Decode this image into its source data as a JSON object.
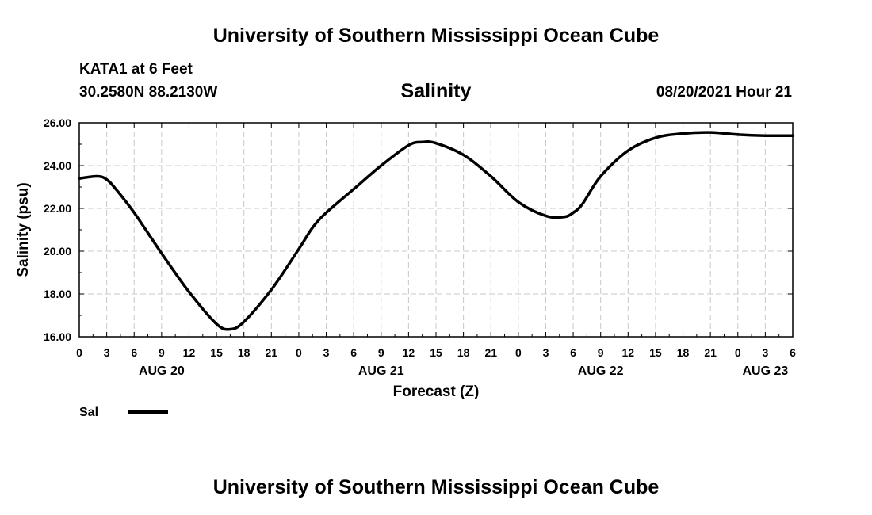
{
  "header": {
    "title": "University of Southern Mississippi Ocean Cube",
    "station": "KATA1 at 6 Feet",
    "coordinates": "30.2580N  88.2130W",
    "valid_time": "08/20/2021 Hour 21"
  },
  "footer": {
    "title": "University of Southern Mississippi Ocean Cube"
  },
  "chart_data": {
    "type": "line",
    "title": "Salinity",
    "xlabel": "Forecast (Z)",
    "ylabel": "Salinity (psu)",
    "ylim": [
      16,
      26
    ],
    "yticks": [
      "16.00",
      "18.00",
      "20.00",
      "22.00",
      "24.00",
      "26.00"
    ],
    "x_unit": "forecast hour",
    "xlim": [
      0,
      78
    ],
    "xtick_labels": [
      "0",
      "3",
      "6",
      "9",
      "12",
      "15",
      "18",
      "21",
      "0",
      "3",
      "6",
      "9",
      "12",
      "15",
      "18",
      "21",
      "0",
      "3",
      "6",
      "9",
      "12",
      "15",
      "18",
      "21",
      "0",
      "3",
      "6"
    ],
    "day_labels": [
      {
        "hour": 9,
        "label": "AUG 20"
      },
      {
        "hour": 33,
        "label": "AUG 21"
      },
      {
        "hour": 57,
        "label": "AUG 22"
      },
      {
        "hour": 75,
        "label": "AUG 23"
      }
    ],
    "grid": true,
    "legend": {
      "placement": "bottom-left"
    },
    "series": [
      {
        "name": "Sal",
        "color": "#000000",
        "x": [
          0,
          2,
          3,
          4,
          6,
          9,
          12,
          15,
          16.5,
          18,
          21,
          24,
          25.5,
          27,
          30,
          33,
          36,
          37.5,
          39,
          42,
          45,
          48,
          51,
          53,
          54,
          55,
          57,
          60,
          63,
          66,
          69,
          72,
          75,
          78
        ],
        "y": [
          23.4,
          23.5,
          23.35,
          22.9,
          21.8,
          19.9,
          18.1,
          16.6,
          16.35,
          16.7,
          18.2,
          20.1,
          21.1,
          21.8,
          22.9,
          24.0,
          24.95,
          25.1,
          25.05,
          24.5,
          23.5,
          22.3,
          21.65,
          21.6,
          21.8,
          22.2,
          23.5,
          24.7,
          25.3,
          25.5,
          25.55,
          25.45,
          25.4,
          25.4
        ]
      }
    ]
  }
}
